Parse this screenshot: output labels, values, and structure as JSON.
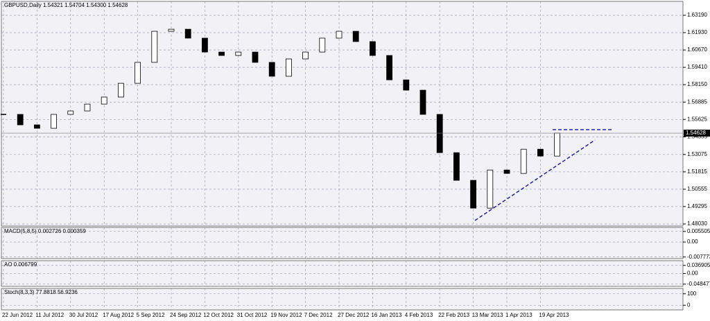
{
  "chart_data": [
    {
      "type": "candlestick",
      "title": "GBPUSD,Daily  1.54321 1.54704 1.54300 1.54628",
      "categories": [
        "22 Jun 2012",
        null,
        "11 Jul 2012",
        null,
        "30 Jul 2012",
        null,
        "17 Aug 2012",
        null,
        "5 Sep 2012",
        null,
        "24 Sep 2012",
        null,
        "12 Oct 2012",
        null,
        "31 Oct 2012",
        null,
        "19 Nov 2012",
        null,
        "7 Dec 2012",
        null,
        "27 Dec 2012",
        null,
        "16 Jan 2013",
        null,
        "4 Feb 2013",
        null,
        "22 Feb 2013",
        null,
        "13 Mar 2013",
        null,
        "1 Apr 2013",
        null,
        "19 Apr 2013",
        null
      ],
      "values": [
        1.5599,
        1.5523,
        1.5498,
        1.5599,
        1.5624,
        1.5674,
        1.5725,
        1.5825,
        1.5977,
        1.6203,
        1.6218,
        1.6153,
        1.6052,
        1.6027,
        1.6052,
        1.5977,
        1.5876,
        1.6002,
        1.6052,
        1.6153,
        1.6203,
        1.6128,
        1.6027,
        1.585,
        1.5775,
        1.5599,
        1.5321,
        1.512,
        1.4918,
        1.5195,
        1.517,
        1.5346,
        1.5296,
        1.54628
      ],
      "ylim": [
        1.4788,
        1.642
      ],
      "yticks": [
        {
          "value": 1.6319,
          "label": "1.63190"
        },
        {
          "value": 1.6193,
          "label": "1.61930"
        },
        {
          "value": 1.6067,
          "label": "1.60670"
        },
        {
          "value": 1.5941,
          "label": "1.59410"
        },
        {
          "value": 1.5815,
          "label": "1.58150"
        },
        1.56885,
        1.55625,
        1.54355,
        1.53075,
        1.51815,
        1.50555,
        1.49295,
        {
          "value": 1.4803,
          "label": "1.48030"
        }
      ],
      "last_price": 1.54628,
      "grid": true
    },
    {
      "type": "indicator",
      "title": "MACD(5,8,5) 0.002726 0.000359",
      "ylim": [
        -0.0086,
        0.00757
      ],
      "yticks": [
        0.005505,
        {
          "value": 0,
          "label": "0.00"
        },
        -0.007773
      ]
    },
    {
      "type": "indicator",
      "title": "AO 0.006799",
      "ylim": [
        -0.0585,
        0.0585
      ],
      "yticks": [
        0.036905,
        {
          "value": 0,
          "label": "0.00"
        },
        -0.048477
      ]
    },
    {
      "type": "indicator",
      "title": "Stoch(8,3,3) 77.8818 56.9236",
      "ylim": [
        -41,
        147
      ],
      "yticks": [
        100,
        0
      ]
    }
  ]
}
